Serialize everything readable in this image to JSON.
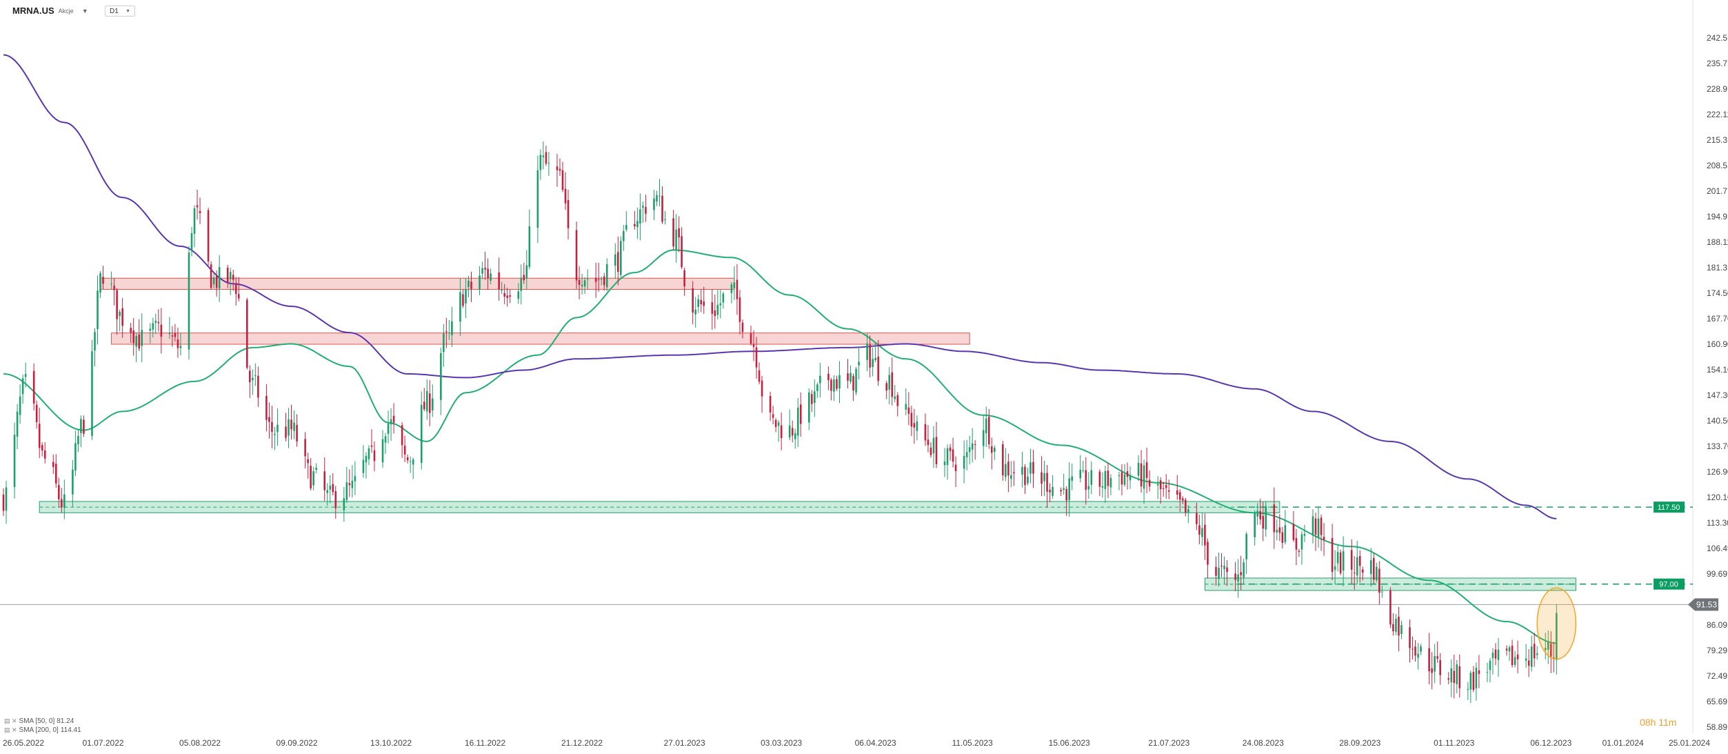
{
  "header": {
    "symbol": "MRNA.US",
    "instrument_type": "Akcje",
    "timeframe": "D1"
  },
  "indicators": [
    {
      "label": "SMA [50, 0]",
      "value": "81.24",
      "color": "#1fae73"
    },
    {
      "label": "SMA [200, 0]",
      "value": "114.41",
      "color": "#5a35b0"
    }
  ],
  "countdown": "08h 11m",
  "colors": {
    "up": "#1a9e6a",
    "down": "#c81e3c",
    "sma50": "#1fae73",
    "sma200": "#5a35b0",
    "resistance_zone": "#f3b3b3",
    "support_zone": "#9ad9bd",
    "highlight": "#f5a623",
    "current_price_tag": "#6f7479"
  },
  "chart_data": {
    "type": "candlestick",
    "y_ticks": [
      "242.51",
      "235.71",
      "228.91",
      "222.11",
      "215.31",
      "208.51",
      "201.71",
      "194.91",
      "188.11",
      "181.31",
      "174.50",
      "167.70",
      "160.90",
      "154.10",
      "147.30",
      "140.50",
      "133.70",
      "126.90",
      "120.10",
      "113.30",
      "106.49",
      "99.69",
      "86.09",
      "79.29",
      "72.49",
      "65.69",
      "58.89"
    ],
    "ylim": [
      58.89,
      242.51
    ],
    "x_ticks": [
      "26.05.2022",
      "01.07.2022",
      "05.08.2022",
      "09.09.2022",
      "13.10.2022",
      "16.11.2022",
      "21.12.2022",
      "27.01.2023",
      "03.03.2023",
      "06.04.2023",
      "11.05.2023",
      "15.06.2023",
      "21.07.2023",
      "24.08.2023",
      "28.09.2023",
      "01.11.2023",
      "06.12.2023",
      "01.01.2024",
      "25.01.2024"
    ],
    "price_anchors": [
      [
        "2022-05-26",
        120
      ],
      [
        "2022-06-03",
        150
      ],
      [
        "2022-06-10",
        130
      ],
      [
        "2022-06-17",
        118
      ],
      [
        "2022-06-24",
        140
      ],
      [
        "2022-07-01",
        180
      ],
      [
        "2022-07-08",
        168
      ],
      [
        "2022-07-15",
        162
      ],
      [
        "2022-07-22",
        165
      ],
      [
        "2022-07-29",
        160
      ],
      [
        "2022-08-03",
        196
      ],
      [
        "2022-08-10",
        178
      ],
      [
        "2022-08-17",
        178
      ],
      [
        "2022-08-24",
        150
      ],
      [
        "2022-08-31",
        138
      ],
      [
        "2022-09-07",
        138
      ],
      [
        "2022-09-14",
        126
      ],
      [
        "2022-09-21",
        120
      ],
      [
        "2022-09-28",
        122
      ],
      [
        "2022-10-05",
        130
      ],
      [
        "2022-10-12",
        140
      ],
      [
        "2022-10-19",
        130
      ],
      [
        "2022-10-26",
        145
      ],
      [
        "2022-11-02",
        162
      ],
      [
        "2022-11-09",
        175
      ],
      [
        "2022-11-16",
        180
      ],
      [
        "2022-11-23",
        176
      ],
      [
        "2022-11-30",
        178
      ],
      [
        "2022-12-05",
        210
      ],
      [
        "2022-12-12",
        206
      ],
      [
        "2022-12-19",
        180
      ],
      [
        "2022-12-26",
        178
      ],
      [
        "2023-01-02",
        183
      ],
      [
        "2023-01-09",
        195
      ],
      [
        "2023-01-16",
        200
      ],
      [
        "2023-01-23",
        190
      ],
      [
        "2023-01-30",
        172
      ],
      [
        "2023-02-06",
        170
      ],
      [
        "2023-02-13",
        175
      ],
      [
        "2023-02-20",
        162
      ],
      [
        "2023-02-27",
        140
      ],
      [
        "2023-03-06",
        138
      ],
      [
        "2023-03-13",
        145
      ],
      [
        "2023-03-20",
        152
      ],
      [
        "2023-03-27",
        150
      ],
      [
        "2023-04-03",
        158
      ],
      [
        "2023-04-10",
        152
      ],
      [
        "2023-04-17",
        142
      ],
      [
        "2023-04-24",
        135
      ],
      [
        "2023-05-01",
        130
      ],
      [
        "2023-05-08",
        130
      ],
      [
        "2023-05-15",
        140
      ],
      [
        "2023-05-22",
        128
      ],
      [
        "2023-05-29",
        127
      ],
      [
        "2023-06-05",
        125
      ],
      [
        "2023-06-12",
        122
      ],
      [
        "2023-06-19",
        124
      ],
      [
        "2023-06-26",
        124
      ],
      [
        "2023-07-03",
        126
      ],
      [
        "2023-07-10",
        126
      ],
      [
        "2023-07-17",
        122
      ],
      [
        "2023-07-24",
        118
      ],
      [
        "2023-07-31",
        112
      ],
      [
        "2023-08-07",
        100
      ],
      [
        "2023-08-14",
        98
      ],
      [
        "2023-08-21",
        116
      ],
      [
        "2023-08-28",
        114
      ],
      [
        "2023-09-04",
        107
      ],
      [
        "2023-09-11",
        113
      ],
      [
        "2023-09-18",
        103
      ],
      [
        "2023-09-25",
        102
      ],
      [
        "2023-10-02",
        102
      ],
      [
        "2023-10-09",
        88
      ],
      [
        "2023-10-16",
        82
      ],
      [
        "2023-10-23",
        76
      ],
      [
        "2023-10-30",
        73
      ],
      [
        "2023-11-06",
        71
      ],
      [
        "2023-11-13",
        75
      ],
      [
        "2023-11-20",
        77
      ],
      [
        "2023-11-27",
        78
      ],
      [
        "2023-12-04",
        80
      ],
      [
        "2023-12-07",
        78
      ],
      [
        "2023-12-08",
        91.53
      ]
    ],
    "current_price": {
      "value": 91.53,
      "label": "91.53"
    },
    "levels": [
      {
        "value": 117.5,
        "label": "117.50"
      },
      {
        "value": 97.0,
        "label": "97.00"
      }
    ],
    "resistance_zones": [
      {
        "from": "2022-06-30",
        "to": "2023-02-14",
        "low": 175.5,
        "high": 178.5
      },
      {
        "from": "2022-07-04",
        "to": "2023-05-10",
        "low": 160.9,
        "high": 163.9
      }
    ],
    "support_zones": [
      {
        "from": "2022-06-08",
        "to": "2023-08-30",
        "low": 116.0,
        "high": 119.0
      },
      {
        "from": "2023-08-03",
        "to": "2023-12-15",
        "low": 95.3,
        "high": 98.6
      }
    ],
    "sma50_anchors": [
      [
        "2022-05-26",
        153
      ],
      [
        "2022-06-24",
        138
      ],
      [
        "2022-07-08",
        143
      ],
      [
        "2022-08-03",
        151
      ],
      [
        "2022-08-24",
        160
      ],
      [
        "2022-09-07",
        161
      ],
      [
        "2022-09-28",
        155
      ],
      [
        "2022-10-12",
        140
      ],
      [
        "2022-10-26",
        135
      ],
      [
        "2022-11-09",
        148
      ],
      [
        "2022-12-05",
        158
      ],
      [
        "2022-12-19",
        168
      ],
      [
        "2023-01-09",
        180
      ],
      [
        "2023-01-23",
        186
      ],
      [
        "2023-02-13",
        184
      ],
      [
        "2023-03-06",
        174
      ],
      [
        "2023-03-27",
        165
      ],
      [
        "2023-04-17",
        157
      ],
      [
        "2023-05-15",
        142
      ],
      [
        "2023-06-12",
        134
      ],
      [
        "2023-07-17",
        124
      ],
      [
        "2023-08-21",
        116
      ],
      [
        "2023-09-25",
        107
      ],
      [
        "2023-10-23",
        98
      ],
      [
        "2023-11-20",
        87
      ],
      [
        "2023-12-08",
        81.24
      ]
    ],
    "sma200_anchors": [
      [
        "2022-05-26",
        238
      ],
      [
        "2022-06-17",
        220
      ],
      [
        "2022-07-08",
        200
      ],
      [
        "2022-07-29",
        187
      ],
      [
        "2022-08-17",
        177
      ],
      [
        "2022-09-07",
        171
      ],
      [
        "2022-09-28",
        164
      ],
      [
        "2022-10-19",
        153
      ],
      [
        "2022-11-09",
        152
      ],
      [
        "2022-11-30",
        154
      ],
      [
        "2022-12-19",
        157
      ],
      [
        "2023-01-23",
        158
      ],
      [
        "2023-02-20",
        159
      ],
      [
        "2023-03-27",
        160
      ],
      [
        "2023-04-17",
        161
      ],
      [
        "2023-05-08",
        159
      ],
      [
        "2023-06-05",
        156
      ],
      [
        "2023-06-26",
        154
      ],
      [
        "2023-07-24",
        153
      ],
      [
        "2023-08-21",
        149
      ],
      [
        "2023-09-11",
        143
      ],
      [
        "2023-10-09",
        135
      ],
      [
        "2023-11-06",
        125
      ],
      [
        "2023-11-27",
        118
      ],
      [
        "2023-12-08",
        114.41
      ]
    ],
    "highlight_ellipse": {
      "from": "2023-12-01",
      "to": "2023-12-15",
      "low": 77,
      "high": 96
    }
  }
}
